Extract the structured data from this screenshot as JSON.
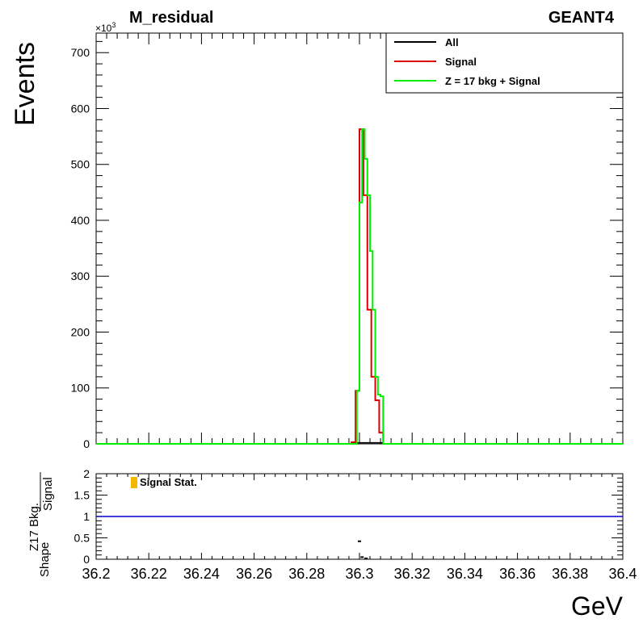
{
  "chart_data": [
    {
      "type": "line",
      "title": "M_residual",
      "label_right": "GEANT4",
      "ylabel": "Events",
      "y_multiplier": "×10",
      "y_multiplier_exp": "3",
      "xlabel": "GeV",
      "xlim": [
        36.2,
        36.4
      ],
      "ylim": [
        0,
        735
      ],
      "x_ticks": [
        "36.2",
        "36.22",
        "36.24",
        "36.26",
        "36.28",
        "36.3",
        "36.32",
        "36.34",
        "36.36",
        "36.38",
        "36.4"
      ],
      "y_ticks": [
        "0",
        "100",
        "200",
        "300",
        "400",
        "500",
        "600",
        "700"
      ],
      "y_tick_values": [
        0,
        100,
        200,
        300,
        400,
        500,
        600,
        700
      ],
      "bin_edges": [
        36.297,
        36.2985,
        36.3,
        36.3015,
        36.303,
        36.3045,
        36.306,
        36.3075,
        36.309
      ],
      "legend": {
        "placement": "top-right"
      },
      "series": [
        {
          "name": "All",
          "color": "#000000",
          "values": [
            2,
            2,
            2,
            2,
            2,
            2,
            2,
            2
          ]
        },
        {
          "name": "Signal",
          "color": "#dd0000",
          "values": [
            3,
            95,
            563,
            445,
            240,
            120,
            78,
            20
          ]
        },
        {
          "name": "Z = 17 bkg + Signal",
          "color": "#00ee00",
          "values": [
            3,
            95,
            563,
            510,
            445,
            240,
            120,
            88
          ]
        }
      ],
      "green_step_values": [
        95,
        432,
        563,
        510,
        445,
        345,
        240,
        120,
        88,
        85
      ]
    },
    {
      "type": "line",
      "ylabel_top": "Z17 Bkg.",
      "ylabel_bottom": "Signal",
      "ylabel_prefix": "Shape",
      "ylim": [
        0,
        2
      ],
      "y_ticks": [
        "0",
        "0.5",
        "1",
        "1.5",
        "2"
      ],
      "y_tick_values": [
        0,
        0.5,
        1,
        1.5,
        2
      ],
      "legend": {
        "label": "Signal Stat.",
        "color": "#f5b800",
        "placement": "top-left"
      },
      "reference_line": {
        "value": 1,
        "color": "#0000cc"
      },
      "points": [
        {
          "x": 36.3,
          "y": 0.42
        },
        {
          "x": 36.301,
          "y": 0.05
        },
        {
          "x": 36.3025,
          "y": 0.02
        }
      ]
    }
  ]
}
